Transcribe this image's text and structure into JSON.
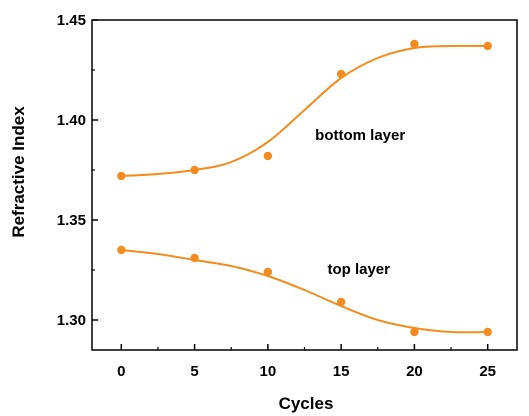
{
  "chart_data": {
    "type": "scatter",
    "title": "",
    "xlabel": "Cycles",
    "ylabel": "Refractive Index",
    "xlim": [
      -2,
      27
    ],
    "ylim": [
      1.285,
      1.45
    ],
    "xticks": [
      0,
      5,
      10,
      15,
      20,
      25
    ],
    "yticks": [
      1.3,
      1.35,
      1.4,
      1.45
    ],
    "ytick_labels": [
      "1.30",
      "1.35",
      "1.40",
      "1.45"
    ],
    "grid": false,
    "legend": "none",
    "color": "#f28c1e",
    "series": [
      {
        "x": [
          0,
          5,
          10,
          15,
          20,
          25
        ],
        "y": [
          1.372,
          1.375,
          1.382,
          1.423,
          1.438,
          1.437
        ],
        "fit_curve": {
          "x": [
            0,
            2.5,
            5,
            7.5,
            10,
            12.5,
            15,
            17.5,
            20,
            22.5,
            25
          ],
          "y": [
            1.372,
            1.373,
            1.375,
            1.379,
            1.389,
            1.405,
            1.421,
            1.431,
            1.436,
            1.437,
            1.437
          ]
        }
      },
      {
        "x": [
          0,
          5,
          10,
          15,
          20,
          25
        ],
        "y": [
          1.335,
          1.331,
          1.324,
          1.309,
          1.294,
          1.294
        ],
        "fit_curve": {
          "x": [
            0,
            2.5,
            5,
            7.5,
            10,
            12.5,
            15,
            17.5,
            20,
            22.5,
            25
          ],
          "y": [
            1.335,
            1.333,
            1.33,
            1.327,
            1.322,
            1.315,
            1.307,
            1.3,
            1.296,
            1.294,
            1.294
          ]
        }
      }
    ],
    "annotations": [
      {
        "text": "bottom layer",
        "x": 16.3,
        "y": 1.39
      },
      {
        "text": "top layer",
        "x": 16.2,
        "y": 1.323
      }
    ]
  }
}
